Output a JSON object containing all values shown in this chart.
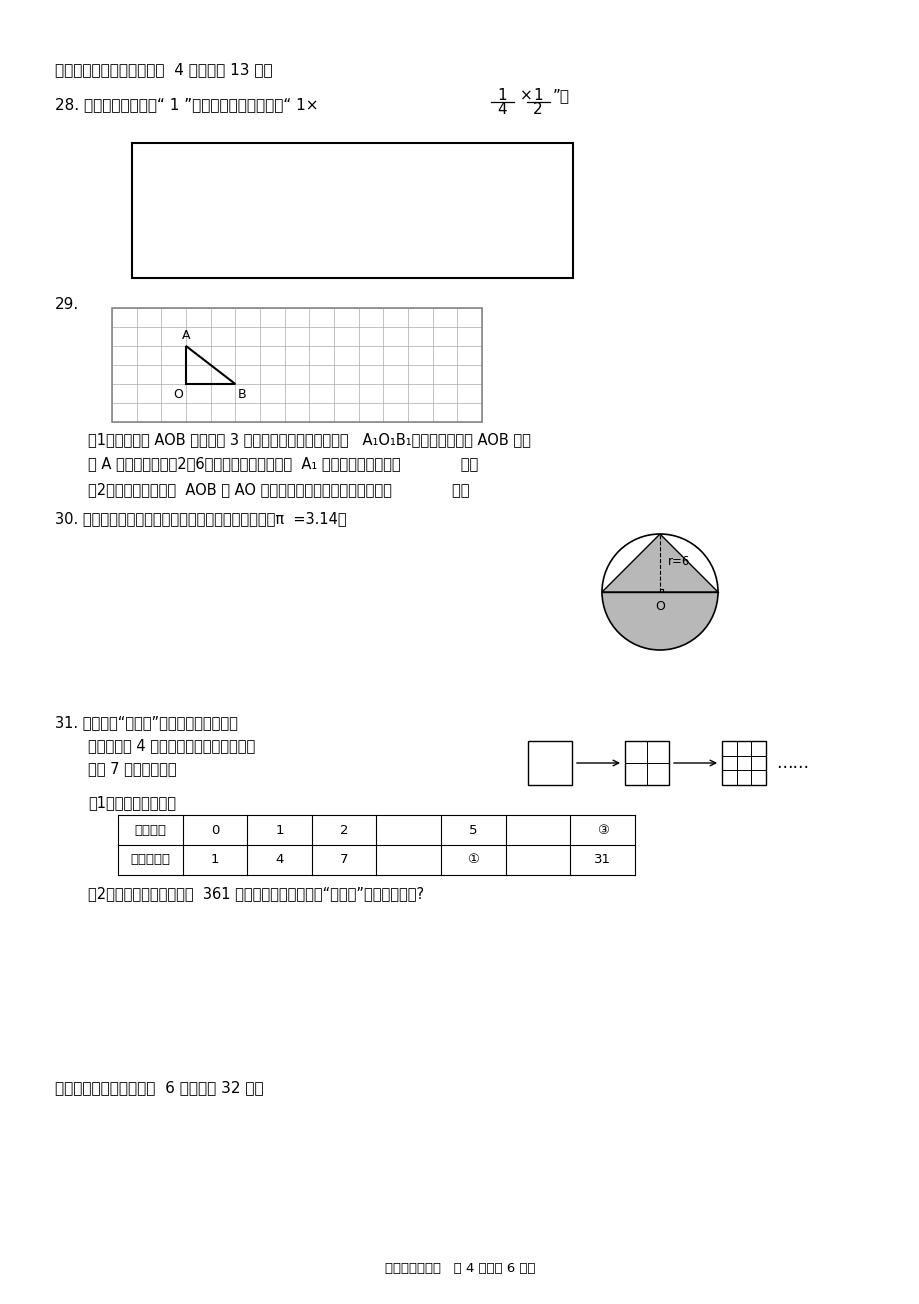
{
  "bg_color": "#ffffff",
  "page_width": 9.2,
  "page_height": 13.04,
  "section4_title": "四、图形与计算（本大题共  4 小题，共 13 分）",
  "q28_line1": "28. 下图的长方形代表“ 1 ”，请在这个图中表示出“ 1×",
  "q28_end": "”。",
  "q29_num": "29.",
  "q29_1": "（1）将三角形 AOB 向右平移 3 格，请画出平移后的三角形   A₁O₁B₁。如果原三角形 AOB 的顶",
  "q29_1b": "点 A 用数对表示为（2，6）。那么则平移后的点  A₁ 的位置应该表示为（             ）；",
  "q29_2": "（2）如果将原三角形  AOB 以 AO 为轴，旋转一周，得到的图形是（             ）。",
  "q30_text": "30. 求出下面图形中阴影部分的面积。（单位：分米，π  =3.14）",
  "q31_line1": "31. 如图，用“十字形”分割正方形，分割一",
  "q31_line2": "次，分成了 4 个小正方形，分割两次，分",
  "q31_line3": "成了 7 个小正方形。",
  "q31_sub1": "（1）将表格填完整。",
  "q31_sub2": "（2）算一算，如果分成了  361 个正方形，那么他共用“十字形”分割了多少次?",
  "section5_title": "五、解决问题（本大题共  6 小题，共 32 分）",
  "footer": "六年级数学试题   第 4 页（共 6 页）",
  "table_row1": [
    "分的次数",
    "0",
    "1",
    "2",
    "",
    "5",
    "",
    "③"
  ],
  "table_row2": [
    "正方形个数",
    "1",
    "4",
    "7",
    "",
    "①",
    "",
    "31"
  ]
}
